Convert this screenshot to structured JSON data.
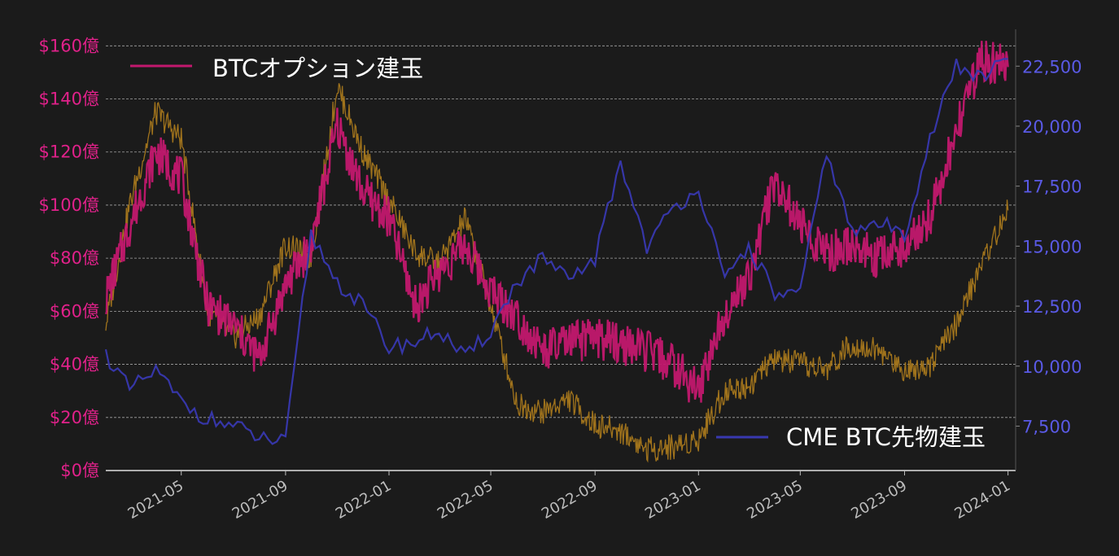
{
  "colors": {
    "background": "#1b1b1b",
    "options_oi": "#c2186e",
    "price_overlay": "#a8781c",
    "cme_futures_oi": "#3838b0",
    "left_axis_text": "#e0218a",
    "right_axis_text": "#5a5ae6",
    "grid": "#bdbdbd",
    "x_tick_text": "#bdbdbd",
    "legend_text": "#ffffff"
  },
  "chart_data": {
    "type": "line",
    "title": "",
    "grid": "horizontal dashed",
    "x": [
      "2021-02-01",
      "2021-03-01",
      "2021-04-01",
      "2021-05-01",
      "2021-06-01",
      "2021-07-01",
      "2021-08-01",
      "2021-09-01",
      "2021-10-01",
      "2021-11-01",
      "2021-12-01",
      "2022-01-01",
      "2022-02-01",
      "2022-03-01",
      "2022-04-01",
      "2022-05-01",
      "2022-06-01",
      "2022-07-01",
      "2022-08-01",
      "2022-09-01",
      "2022-10-01",
      "2022-11-01",
      "2022-12-01",
      "2023-01-01",
      "2023-02-01",
      "2023-03-01",
      "2023-04-01",
      "2023-05-01",
      "2023-06-01",
      "2023-07-01",
      "2023-08-01",
      "2023-09-01",
      "2023-10-01",
      "2023-11-01",
      "2023-12-01",
      "2024-01-01"
    ],
    "x_ticks": [
      "2021-05",
      "2021-09",
      "2022-01",
      "2022-05",
      "2022-09",
      "2023-01",
      "2023-05",
      "2023-09",
      "2024-01"
    ],
    "left_axis": {
      "range": [
        0,
        165
      ],
      "ticks": [
        0,
        20,
        40,
        60,
        80,
        100,
        120,
        140,
        160
      ],
      "tick_labels": [
        "$0億",
        "$20億",
        "$40億",
        "$60億",
        "$80億",
        "$100億",
        "$120億",
        "$140億",
        "$160億"
      ]
    },
    "right_axis": {
      "range": [
        5650,
        23900
      ],
      "ticks": [
        7500,
        10000,
        12500,
        15000,
        17500,
        20000,
        22500
      ],
      "tick_labels": [
        "7,500",
        "10,000",
        "12,500",
        "15,000",
        "17,500",
        "20,000",
        "22,500"
      ]
    },
    "legends": [
      {
        "label": "BTCオプション建玉",
        "placement": "top-left",
        "series": "options_oi"
      },
      {
        "label": "CME BTC先物建玉",
        "placement": "bottom-right",
        "series": "cme_futures_oi"
      }
    ],
    "series": [
      {
        "key": "options_oi",
        "name": "BTCオプション建玉",
        "axis": "left",
        "color": "#c2186e",
        "values": [
          65,
          92,
          120,
          110,
          62,
          55,
          42,
          70,
          85,
          130,
          105,
          95,
          62,
          75,
          85,
          68,
          58,
          45,
          48,
          50,
          48,
          45,
          40,
          30,
          60,
          72,
          110,
          92,
          82,
          85,
          80,
          85,
          95,
          128,
          155,
          152
        ]
      },
      {
        "key": "price_overlay",
        "axis": "left",
        "color": "#a8781c",
        "values": [
          55,
          100,
          135,
          125,
          60,
          50,
          58,
          85,
          80,
          145,
          120,
          102,
          82,
          78,
          95,
          62,
          25,
          22,
          27,
          17,
          15,
          8,
          9,
          12,
          30,
          32,
          42,
          40,
          38,
          48,
          45,
          38,
          40,
          55,
          78,
          98
        ]
      },
      {
        "key": "cme_futures_oi",
        "axis": "right",
        "color": "#3838b0",
        "values": [
          10500,
          9000,
          9800,
          8500,
          7800,
          7500,
          7000,
          6800,
          15500,
          13500,
          12500,
          10800,
          11000,
          11500,
          10300,
          11500,
          13500,
          14500,
          13500,
          14500,
          18500,
          15000,
          16500,
          17500,
          13500,
          15000,
          13000,
          13000,
          19000,
          15500,
          16000,
          15500,
          19500,
          22500,
          22000,
          22800
        ]
      }
    ]
  }
}
